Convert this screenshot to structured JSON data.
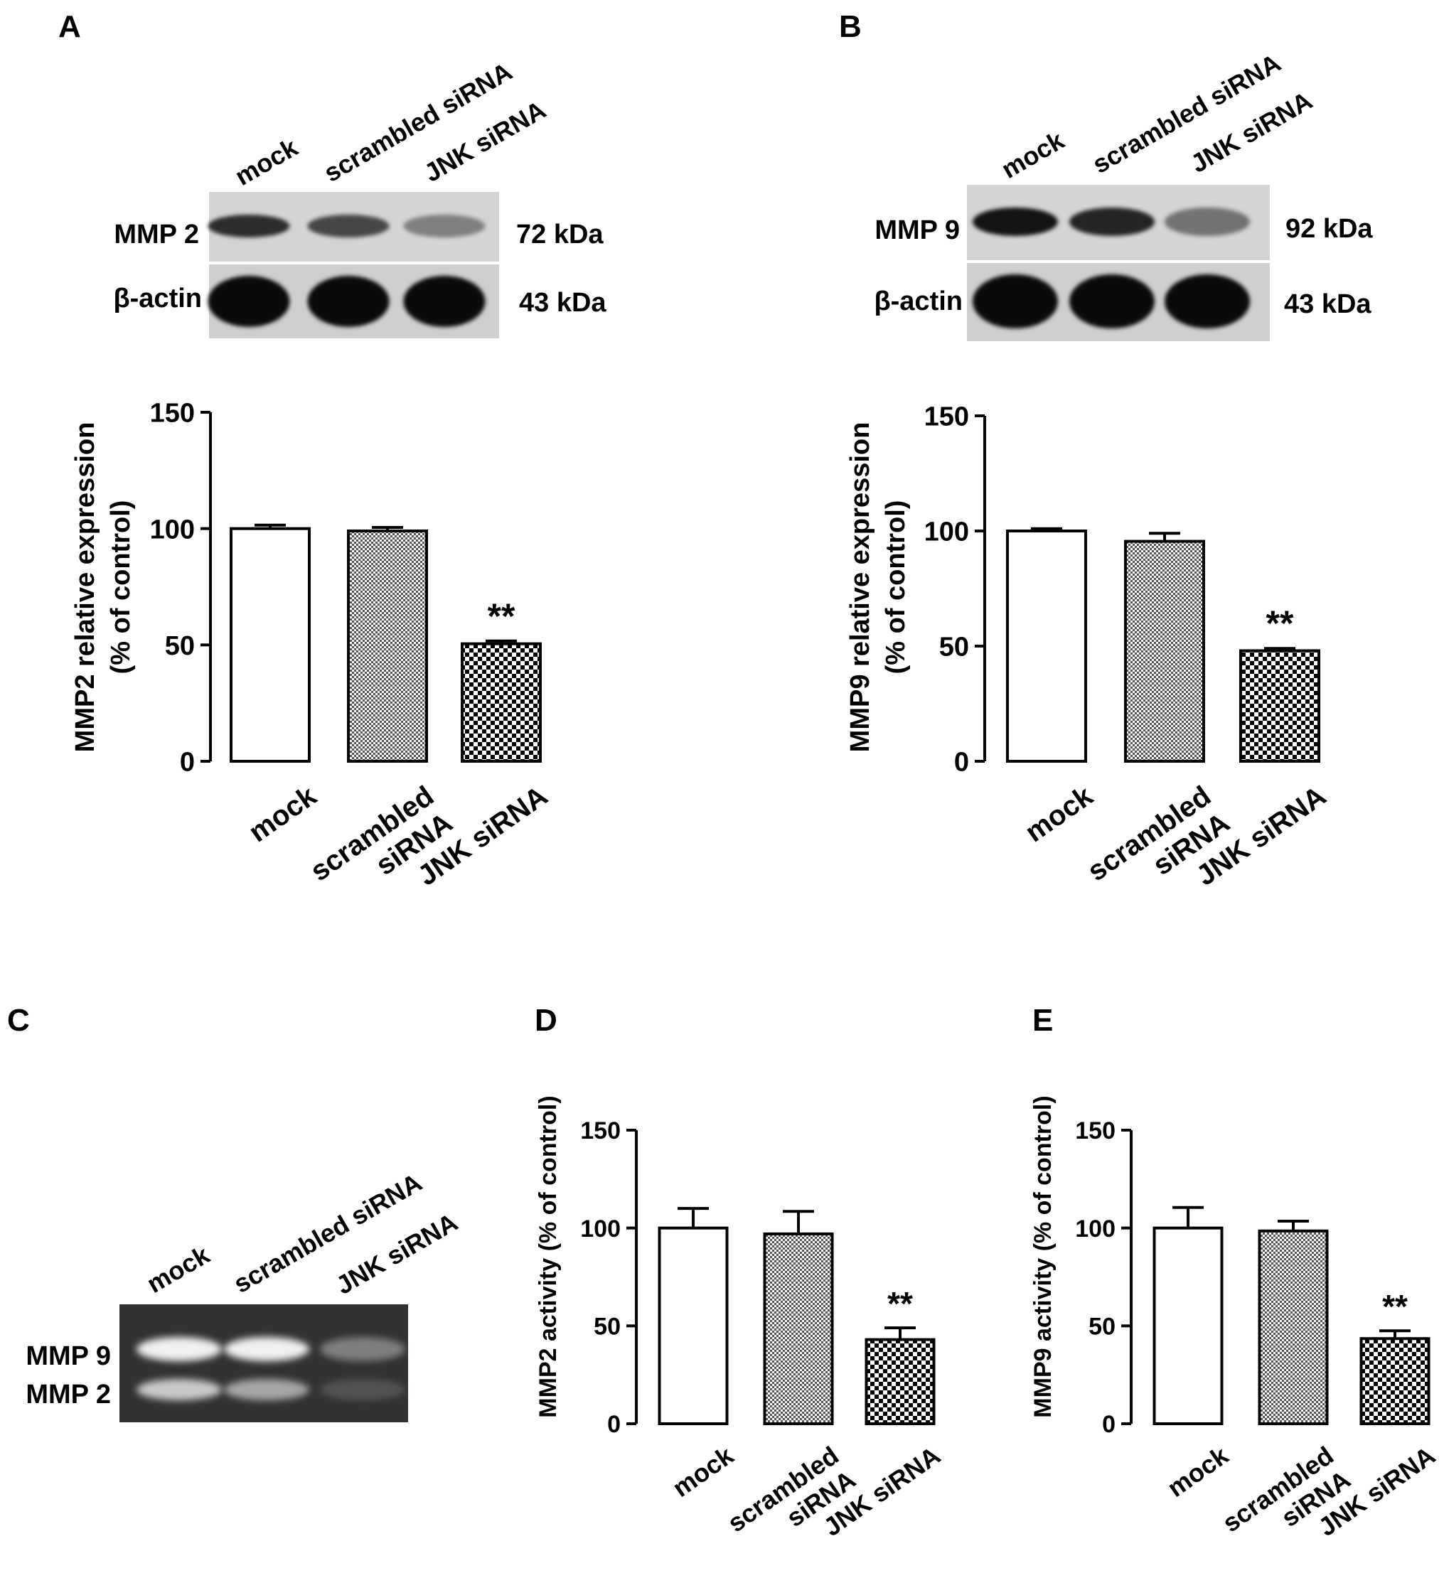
{
  "panels": {
    "A": {
      "letter": "A",
      "lanes": [
        "mock",
        "scrambled siRNA",
        "JNK siRNA"
      ],
      "rows": [
        {
          "label": "MMP 2",
          "kda": "72 kDa",
          "intensity": [
            0.8,
            0.65,
            0.25
          ]
        },
        {
          "label": "β-actin",
          "kda": "43 kDa",
          "intensity": [
            1.0,
            1.0,
            1.0
          ]
        }
      ]
    },
    "B": {
      "letter": "B",
      "lanes": [
        "mock",
        "scrambled siRNA",
        "JNK siRNA"
      ],
      "rows": [
        {
          "label": "MMP 9",
          "kda": "92 kDa",
          "intensity": [
            0.95,
            0.85,
            0.35
          ]
        },
        {
          "label": "β-actin",
          "kda": "43 kDa",
          "intensity": [
            1.0,
            1.0,
            1.0
          ]
        }
      ]
    },
    "C": {
      "letter": "C",
      "lanes": [
        "mock",
        "scrambled siRNA",
        "JNK siRNA"
      ],
      "rows": [
        {
          "label": "MMP 9",
          "intensity": [
            0.95,
            0.95,
            0.45
          ]
        },
        {
          "label": "MMP 2",
          "intensity": [
            0.8,
            0.65,
            0.15
          ]
        }
      ]
    },
    "D": {
      "letter": "D"
    },
    "E": {
      "letter": "E"
    }
  },
  "chart_data": [
    {
      "id": "A",
      "type": "bar",
      "categories": [
        [
          "mock"
        ],
        [
          "scrambled",
          "siRNA"
        ],
        [
          "JNK siRNA"
        ]
      ],
      "series": [
        {
          "values": [
            100,
            99,
            50.5
          ],
          "errors": [
            1.5,
            1.5,
            1.2
          ]
        }
      ],
      "ylabel": [
        "MMP2 relative expression",
        "(% of control)"
      ],
      "ylim": [
        0,
        150
      ],
      "yticks": [
        0,
        50,
        100,
        150
      ],
      "annotations": [
        {
          "category": 2,
          "text": "**"
        }
      ],
      "fills": [
        "white",
        "fine-check",
        "coarse-check"
      ]
    },
    {
      "id": "B",
      "type": "bar",
      "categories": [
        [
          "mock"
        ],
        [
          "scrambled",
          "siRNA"
        ],
        [
          "JNK siRNA"
        ]
      ],
      "series": [
        {
          "values": [
            100,
            95.5,
            48
          ],
          "errors": [
            1.0,
            3.5,
            1.0
          ]
        }
      ],
      "ylabel": [
        "MMP9 relative expression",
        "(% of control)"
      ],
      "ylim": [
        0,
        150
      ],
      "yticks": [
        0,
        50,
        100,
        150
      ],
      "annotations": [
        {
          "category": 2,
          "text": "**"
        }
      ],
      "fills": [
        "white",
        "fine-check",
        "coarse-check"
      ]
    },
    {
      "id": "D",
      "type": "bar",
      "categories": [
        [
          "mock"
        ],
        [
          "scrambled",
          "siRNA"
        ],
        [
          "JNK siRNA"
        ]
      ],
      "series": [
        {
          "values": [
            100,
            97,
            43
          ],
          "errors": [
            10,
            11.5,
            6
          ]
        }
      ],
      "ylabel": [
        "MMP2 activity (% of control)"
      ],
      "ylim": [
        0,
        150
      ],
      "yticks": [
        0,
        50,
        100,
        150
      ],
      "annotations": [
        {
          "category": 2,
          "text": "**"
        }
      ],
      "fills": [
        "white",
        "fine-check",
        "coarse-check"
      ]
    },
    {
      "id": "E",
      "type": "bar",
      "categories": [
        [
          "mock"
        ],
        [
          "scrambled",
          "siRNA"
        ],
        [
          "JNK siRNA"
        ]
      ],
      "series": [
        {
          "values": [
            100,
            98.5,
            43.5
          ],
          "errors": [
            10.5,
            5,
            4
          ]
        }
      ],
      "ylabel": [
        "MMP9 activity (% of control)"
      ],
      "ylim": [
        0,
        150
      ],
      "yticks": [
        0,
        50,
        100,
        150
      ],
      "annotations": [
        {
          "category": 2,
          "text": "**"
        }
      ],
      "fills": [
        "white",
        "fine-check",
        "coarse-check"
      ]
    }
  ]
}
